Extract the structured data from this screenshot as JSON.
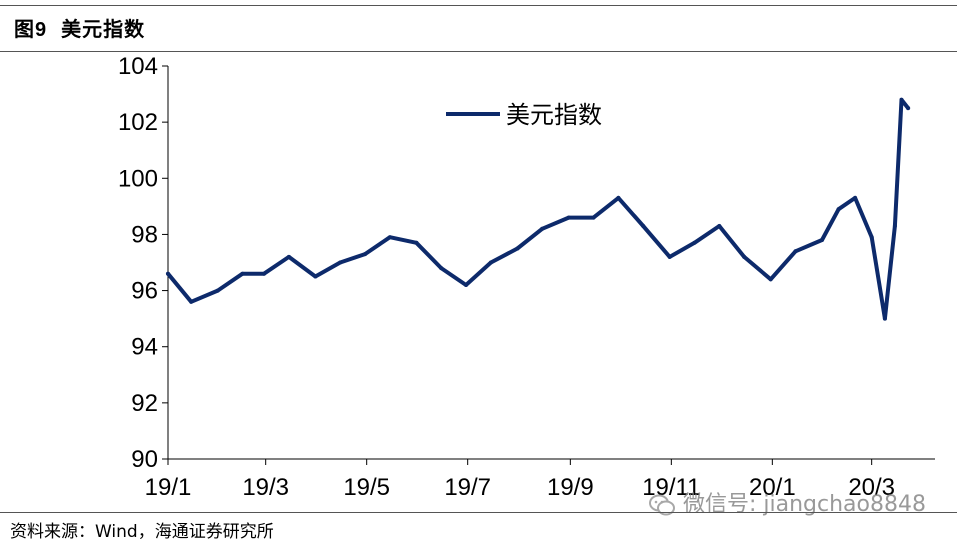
{
  "header": {
    "figure_no": "图9",
    "title": "美元指数"
  },
  "footer": {
    "source": "资料来源：Wind，海通证券研究所"
  },
  "watermark": {
    "text": "微信号: jiangchao8848"
  },
  "chart_data": {
    "type": "line",
    "title": "美元指数",
    "xlabel": "",
    "ylabel": "",
    "ylim": [
      90,
      104
    ],
    "yticks": [
      "90",
      "92",
      "94",
      "96",
      "98",
      "100",
      "102",
      "104"
    ],
    "xticks": [
      "19/1",
      "19/3",
      "19/5",
      "19/7",
      "19/9",
      "19/11",
      "20/1",
      "20/3"
    ],
    "legend": {
      "position": "top-center",
      "entries": [
        "美元指数"
      ]
    },
    "grid": false,
    "color": "#0d2a6b",
    "series": [
      {
        "name": "美元指数",
        "x": [
          "2019-01-01",
          "2019-01-15",
          "2019-01-31",
          "2019-02-15",
          "2019-02-28",
          "2019-03-15",
          "2019-03-31",
          "2019-04-15",
          "2019-04-30",
          "2019-05-15",
          "2019-05-31",
          "2019-06-15",
          "2019-06-30",
          "2019-07-15",
          "2019-07-31",
          "2019-08-15",
          "2019-08-31",
          "2019-09-15",
          "2019-09-30",
          "2019-10-15",
          "2019-10-31",
          "2019-11-15",
          "2019-11-30",
          "2019-12-15",
          "2019-12-31",
          "2020-01-15",
          "2020-01-31",
          "2020-02-10",
          "2020-02-20",
          "2020-03-01",
          "2020-03-09",
          "2020-03-15",
          "2020-03-19",
          "2020-03-23"
        ],
        "values": [
          96.6,
          95.6,
          96.0,
          96.6,
          96.6,
          97.2,
          96.5,
          97.0,
          97.3,
          97.9,
          97.7,
          96.8,
          96.2,
          97.0,
          97.5,
          98.2,
          98.6,
          98.6,
          99.3,
          98.3,
          97.2,
          97.7,
          98.3,
          97.2,
          96.4,
          97.4,
          97.8,
          98.9,
          99.3,
          97.9,
          95.0,
          98.3,
          102.8,
          102.5
        ]
      }
    ]
  }
}
